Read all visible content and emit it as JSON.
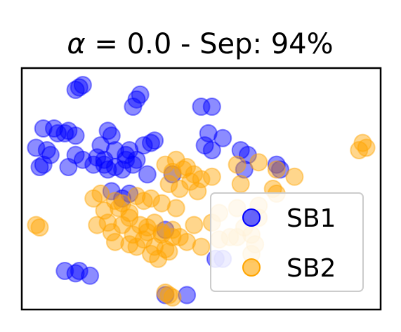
{
  "chart_data": {
    "type": "scatter",
    "title_alpha_symbol": "α",
    "title_rest": " = 0.0 - Sep: 94%",
    "xlabel": "",
    "ylabel": "",
    "xlim": [
      0,
      10
    ],
    "ylim": [
      0,
      10
    ],
    "grid": false,
    "axis_ticks": false,
    "legend_position": "lower-right",
    "marker_alpha": 0.45,
    "series": [
      {
        "name": "SB1",
        "color": "#0000ff",
        "x": [
          1.6,
          1.7,
          1.5,
          3.2,
          3.3,
          3.1,
          5.0,
          5.3,
          0.6,
          0.9,
          1.2,
          1.3,
          1.0,
          2.4,
          2.5,
          1.5,
          0.4,
          0.7,
          2.3,
          2.6,
          2.2,
          2.9,
          3.0,
          3.4,
          3.6,
          3.2,
          3.7,
          5.2,
          5.1,
          5.3,
          5.6,
          0.5,
          0.6,
          0.8,
          1.3,
          1.5,
          1.7,
          2.0,
          2.1,
          2.3,
          2.4,
          2.6,
          2.8,
          2.9,
          3.1,
          3.5,
          4.2,
          6.1,
          6.3,
          6.2,
          7.1,
          7.2,
          2.5,
          2.8,
          3.0,
          1.2,
          1.5,
          1.6,
          1.9,
          4.0,
          4.6,
          5.4,
          5.6,
          4.0
        ],
        "y": [
          9.2,
          9.3,
          9.1,
          8.7,
          8.9,
          8.4,
          8.4,
          8.4,
          7.5,
          7.5,
          7.3,
          7.4,
          7.3,
          7.4,
          7.2,
          7.2,
          6.7,
          6.6,
          6.2,
          6.6,
          6.8,
          6.4,
          6.6,
          6.8,
          6.9,
          6.2,
          7.0,
          7.3,
          6.8,
          6.6,
          7.1,
          5.9,
          6.0,
          6.4,
          5.9,
          6.4,
          6.2,
          6.0,
          6.3,
          6.0,
          5.8,
          5.9,
          5.8,
          6.2,
          6.0,
          5.6,
          5.6,
          6.6,
          6.4,
          5.8,
          6.0,
          5.8,
          4.9,
          4.6,
          4.8,
          1.6,
          1.5,
          1.6,
          1.4,
          0.6,
          0.6,
          2.1,
          2.1,
          3.3
        ]
      },
      {
        "name": "SB2",
        "color": "#ffa500",
        "x": [
          9.5,
          9.6,
          9.4,
          0.4,
          0.5,
          4.0,
          4.3,
          4.6,
          4.2,
          4.5,
          4.8,
          4.1,
          4.4,
          4.7,
          5.0,
          5.3,
          4.9,
          2.0,
          2.2,
          2.6,
          2.8,
          3.2,
          3.4,
          2.3,
          2.7,
          3.0,
          3.6,
          3.9,
          4.3,
          2.4,
          3.0,
          3.3,
          3.7,
          4.2,
          3.5,
          3.9,
          4.2,
          2.1,
          2.5,
          2.8,
          3.1,
          3.5,
          3.9,
          4.4,
          4.8,
          2.6,
          3.0,
          3.4,
          3.7,
          4.1,
          4.6,
          5.0,
          5.5,
          6.0,
          3.2,
          3.6,
          3.8,
          4.0,
          6.4,
          5.5,
          6.0,
          5.3,
          6.6,
          6.2,
          5.8,
          6.5,
          6.4,
          7.1,
          6.6,
          6.0,
          6.6,
          7.1,
          7.6,
          6.1,
          7.0,
          4.1,
          4.2,
          4.0
        ],
        "y": [
          6.9,
          6.7,
          6.6,
          3.5,
          3.4,
          6.0,
          6.2,
          5.9,
          5.7,
          5.8,
          5.6,
          5.2,
          5.0,
          5.3,
          5.4,
          5.5,
          4.9,
          4.6,
          4.8,
          4.5,
          4.4,
          4.7,
          4.5,
          4.1,
          4.2,
          4.0,
          4.6,
          4.4,
          4.2,
          3.6,
          3.8,
          3.5,
          3.6,
          3.3,
          3.2,
          3.1,
          3.0,
          3.5,
          3.2,
          3.5,
          3.1,
          3.4,
          3.2,
          3.0,
          3.5,
          2.8,
          2.7,
          2.9,
          2.6,
          2.4,
          2.8,
          2.6,
          2.9,
          3.0,
          2.6,
          2.3,
          2.1,
          2.5,
          3.1,
          4.0,
          4.2,
          3.6,
          3.8,
          3.4,
          3.0,
          2.7,
          2.3,
          4.8,
          4.3,
          6.0,
          6.1,
          5.8,
          5.5,
          5.2,
          5.0,
          0.6,
          0.5,
          0.7
        ]
      }
    ]
  }
}
